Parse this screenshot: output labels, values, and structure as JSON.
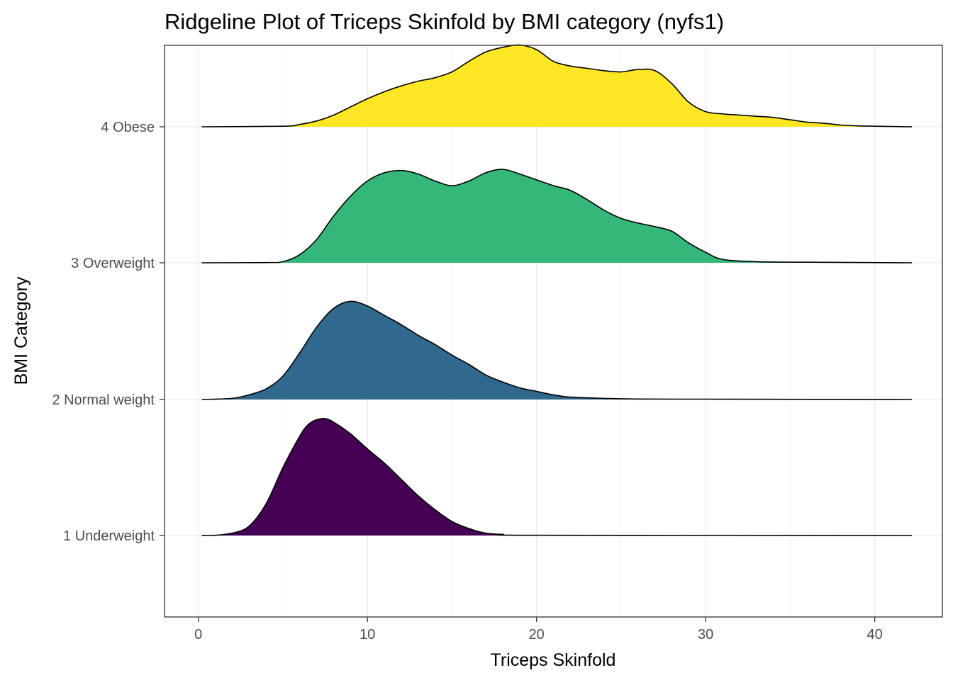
{
  "chart_data": {
    "type": "ridgeline",
    "title": "Ridgeline Plot of Triceps Skinfold by BMI category (nyfs1)",
    "xlabel": "Triceps Skinfold",
    "ylabel": "BMI Category",
    "xlim": [
      -2,
      44
    ],
    "x_ticks": [
      0,
      10,
      20,
      30,
      40
    ],
    "grid": true,
    "categories": [
      "1 Underweight",
      "2 Normal weight",
      "3 Overweight",
      "4 Obese"
    ],
    "series": [
      {
        "name": "1 Underweight",
        "color": "#440154",
        "density": [
          [
            0.2,
            0
          ],
          [
            1,
            0.002
          ],
          [
            2,
            0.02
          ],
          [
            3,
            0.08
          ],
          [
            4,
            0.27
          ],
          [
            5,
            0.58
          ],
          [
            6,
            0.85
          ],
          [
            6.5,
            0.95
          ],
          [
            7,
            0.99
          ],
          [
            7.5,
            1.0
          ],
          [
            8,
            0.97
          ],
          [
            9,
            0.87
          ],
          [
            10,
            0.74
          ],
          [
            11,
            0.62
          ],
          [
            12,
            0.48
          ],
          [
            13,
            0.34
          ],
          [
            14,
            0.22
          ],
          [
            15,
            0.12
          ],
          [
            16,
            0.06
          ],
          [
            17,
            0.02
          ],
          [
            18,
            0.01
          ],
          [
            20,
            0.002
          ],
          [
            42.2,
            0
          ]
        ]
      },
      {
        "name": "2 Normal weight",
        "color": "#31688e",
        "density": [
          [
            0.2,
            0
          ],
          [
            2,
            0.01
          ],
          [
            3,
            0.04
          ],
          [
            4,
            0.09
          ],
          [
            5,
            0.2
          ],
          [
            6,
            0.4
          ],
          [
            7,
            0.62
          ],
          [
            8,
            0.78
          ],
          [
            9,
            0.84
          ],
          [
            10,
            0.8
          ],
          [
            11,
            0.72
          ],
          [
            12,
            0.64
          ],
          [
            13,
            0.55
          ],
          [
            14,
            0.47
          ],
          [
            15,
            0.38
          ],
          [
            16,
            0.3
          ],
          [
            17,
            0.21
          ],
          [
            18,
            0.15
          ],
          [
            19,
            0.1
          ],
          [
            20,
            0.07
          ],
          [
            21,
            0.04
          ],
          [
            22,
            0.02
          ],
          [
            24,
            0.01
          ],
          [
            26,
            0.004
          ],
          [
            30,
            0.003
          ],
          [
            34,
            0.002
          ],
          [
            42.2,
            0
          ]
        ]
      },
      {
        "name": "3 Overweight",
        "color": "#35b779",
        "density": [
          [
            0.2,
            0
          ],
          [
            4,
            0.002
          ],
          [
            5,
            0.01
          ],
          [
            6,
            0.07
          ],
          [
            7,
            0.2
          ],
          [
            8,
            0.4
          ],
          [
            9,
            0.57
          ],
          [
            10,
            0.7
          ],
          [
            11,
            0.77
          ],
          [
            12,
            0.79
          ],
          [
            13,
            0.76
          ],
          [
            14,
            0.7
          ],
          [
            15,
            0.66
          ],
          [
            16,
            0.7
          ],
          [
            17,
            0.77
          ],
          [
            18,
            0.8
          ],
          [
            19,
            0.76
          ],
          [
            20,
            0.71
          ],
          [
            21,
            0.66
          ],
          [
            22,
            0.62
          ],
          [
            23,
            0.54
          ],
          [
            24,
            0.45
          ],
          [
            25,
            0.38
          ],
          [
            26,
            0.34
          ],
          [
            27,
            0.31
          ],
          [
            28,
            0.27
          ],
          [
            29,
            0.17
          ],
          [
            30,
            0.09
          ],
          [
            31,
            0.03
          ],
          [
            33,
            0.01
          ],
          [
            36,
            0.005
          ],
          [
            42.2,
            0
          ]
        ]
      },
      {
        "name": "4 Obese",
        "color": "#fde725",
        "density": [
          [
            0.2,
            0
          ],
          [
            5,
            0.005
          ],
          [
            6,
            0.02
          ],
          [
            7,
            0.05
          ],
          [
            8,
            0.1
          ],
          [
            9,
            0.17
          ],
          [
            10,
            0.24
          ],
          [
            11,
            0.3
          ],
          [
            12,
            0.35
          ],
          [
            13,
            0.39
          ],
          [
            14,
            0.42
          ],
          [
            15,
            0.47
          ],
          [
            16,
            0.56
          ],
          [
            17,
            0.64
          ],
          [
            18,
            0.68
          ],
          [
            19,
            0.7
          ],
          [
            20,
            0.66
          ],
          [
            21,
            0.56
          ],
          [
            22,
            0.52
          ],
          [
            23,
            0.5
          ],
          [
            24,
            0.48
          ],
          [
            25,
            0.47
          ],
          [
            26,
            0.49
          ],
          [
            27,
            0.48
          ],
          [
            28,
            0.37
          ],
          [
            29,
            0.21
          ],
          [
            30,
            0.13
          ],
          [
            31,
            0.11
          ],
          [
            32,
            0.1
          ],
          [
            33,
            0.09
          ],
          [
            34,
            0.08
          ],
          [
            35,
            0.06
          ],
          [
            36,
            0.04
          ],
          [
            37,
            0.03
          ],
          [
            38,
            0.015
          ],
          [
            39,
            0.008
          ],
          [
            40,
            0.005
          ],
          [
            42.2,
            0
          ]
        ]
      }
    ]
  }
}
